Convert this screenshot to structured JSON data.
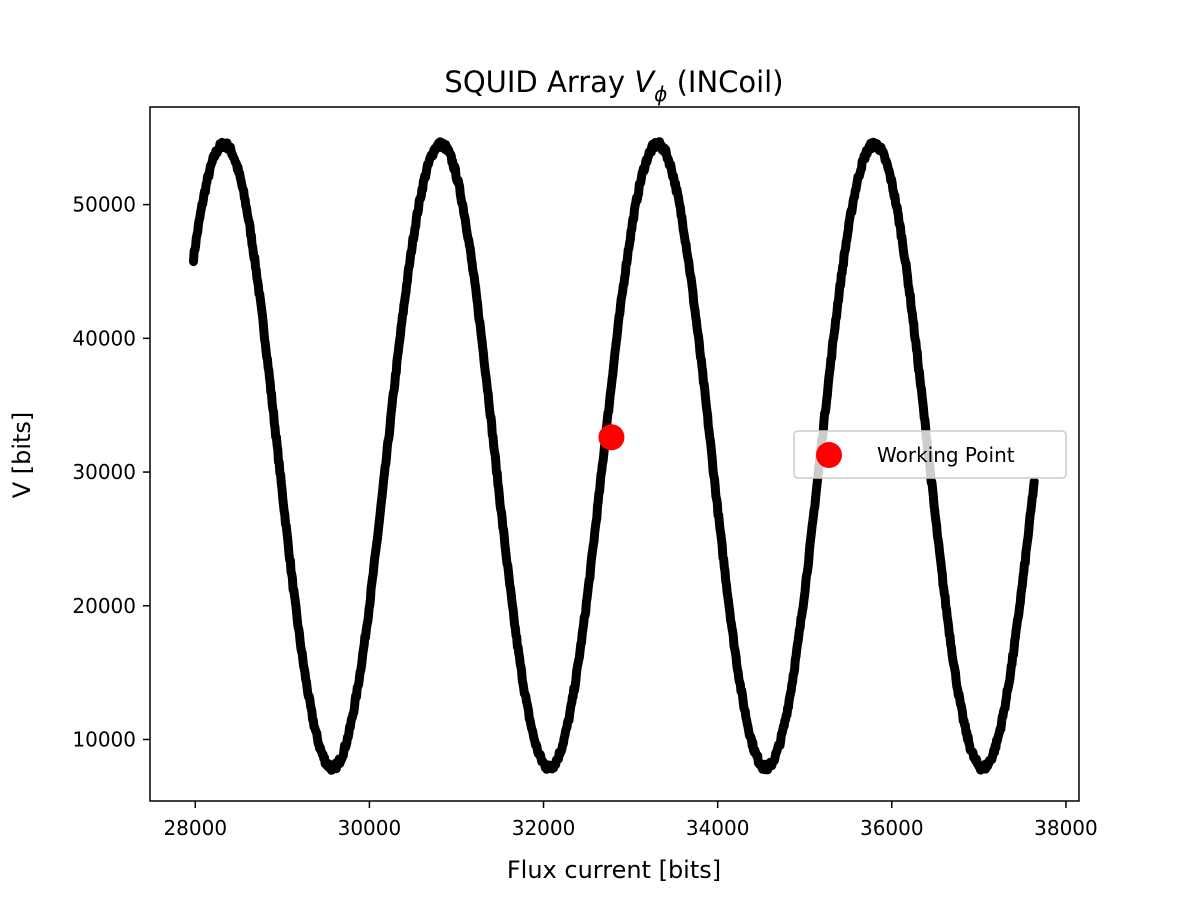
{
  "chart_data": {
    "type": "scatter",
    "title_main": "SQUID Array ",
    "title_symbol": "V",
    "title_subscript": "ϕ",
    "title_suffix": " (INCoil)",
    "xlabel": "Flux current [bits]",
    "ylabel": "V [bits]",
    "xlim": [
      27480,
      38150
    ],
    "ylim": [
      5400,
      57300
    ],
    "xticks": [
      28000,
      30000,
      32000,
      34000,
      36000,
      38000
    ],
    "yticks": [
      10000,
      20000,
      30000,
      40000,
      50000
    ],
    "grid": false,
    "legend_position": "center-right",
    "colors": {
      "data": "#000000",
      "working_point": "#ff0000"
    },
    "series": [
      {
        "type": "line",
        "description_period": 2490,
        "x_start": 27980,
        "x_end": 37640,
        "y_min": 7900,
        "y_max": 54500,
        "peaks_x": [
          28330,
          30820,
          33300,
          35790
        ],
        "troughs_x": [
          29600,
          32100,
          34600,
          37080
        ]
      },
      {
        "name": "Working Point",
        "type": "scatter",
        "x": [
          32780
        ],
        "y": [
          32600
        ]
      }
    ]
  }
}
